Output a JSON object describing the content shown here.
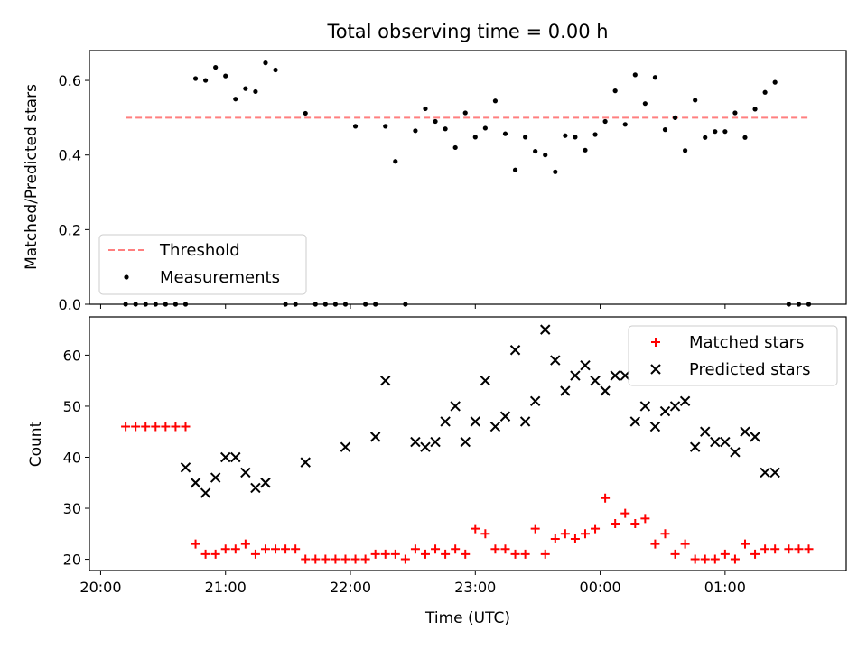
{
  "chart_data": [
    {
      "type": "scatter",
      "title": "Total observing time = 0.00 h",
      "xlabel": "",
      "ylabel": "Matched/Predicted stars",
      "x_tick_labels": [
        "20:00",
        "21:00",
        "22:00",
        "23:00",
        "00:00",
        "01:00"
      ],
      "x_ticks_hours": [
        0,
        1,
        2,
        3,
        4,
        5
      ],
      "xlim_hours": [
        -0.09,
        5.97
      ],
      "ylim": [
        0.0,
        0.68
      ],
      "y_ticks": [
        "0.0",
        "0.2",
        "0.4",
        "0.6"
      ],
      "y_tick_values": [
        0.0,
        0.2,
        0.4,
        0.6
      ],
      "legend_position": "lower-left",
      "threshold": {
        "name": "Threshold",
        "value": 0.5,
        "x_range_hours": [
          0.2,
          5.67
        ],
        "color": "#ff7f7f",
        "style": "dashed"
      },
      "series": [
        {
          "name": "Measurements",
          "color": "#000000",
          "marker": "dot",
          "x_hours": [
            0.2,
            0.28,
            0.36,
            0.44,
            0.52,
            0.6,
            0.68,
            0.76,
            0.84,
            0.92,
            1.0,
            1.08,
            1.16,
            1.24,
            1.32,
            1.4,
            1.48,
            1.56,
            1.64,
            1.72,
            1.8,
            1.88,
            1.96,
            2.04,
            2.12,
            2.2,
            2.28,
            2.36,
            2.44,
            2.52,
            2.6,
            2.68,
            2.76,
            2.84,
            2.92,
            3.0,
            3.08,
            3.16,
            3.24,
            3.32,
            3.4,
            3.48,
            3.56,
            3.64,
            3.72,
            3.8,
            3.88,
            3.96,
            4.04,
            4.12,
            4.2,
            4.28,
            4.36,
            4.44,
            4.52,
            4.6,
            4.68,
            4.76,
            4.84,
            4.92,
            5.0,
            5.08,
            5.16,
            5.24,
            5.32,
            5.4,
            5.51,
            5.59,
            5.67
          ],
          "y": [
            0,
            0,
            0,
            0,
            0,
            0,
            0,
            0.605,
            0.6,
            0.635,
            0.612,
            0.55,
            0.578,
            0.57,
            0.647,
            0.628,
            0,
            0,
            0.512,
            0,
            0,
            0,
            0,
            0.477,
            0,
            0,
            0.477,
            0.383,
            0,
            0.465,
            0.524,
            0.49,
            0.47,
            0.42,
            0.513,
            0.448,
            0.472,
            0.545,
            0.457,
            0.36,
            0.448,
            0.41,
            0.4,
            0.355,
            0.452,
            0.448,
            0.413,
            0.455,
            0.49,
            0.572,
            0.482,
            0.615,
            0.538,
            0.608,
            0.468,
            0.5,
            0.412,
            0.547,
            0.447,
            0.463,
            0.463,
            0.513,
            0.447,
            0.523,
            0.568,
            0.595,
            0,
            0,
            0
          ]
        }
      ]
    },
    {
      "type": "scatter",
      "title": "",
      "xlabel": "Time (UTC)",
      "ylabel": "Count",
      "x_tick_labels": [
        "20:00",
        "21:00",
        "22:00",
        "23:00",
        "00:00",
        "01:00"
      ],
      "x_ticks_hours": [
        0,
        1,
        2,
        3,
        4,
        5
      ],
      "xlim_hours": [
        -0.09,
        5.97
      ],
      "ylim": [
        17.8,
        67.5
      ],
      "y_ticks": [
        "20",
        "30",
        "40",
        "50",
        "60"
      ],
      "y_tick_values": [
        20,
        30,
        40,
        50,
        60
      ],
      "legend_position": "upper-right",
      "series": [
        {
          "name": "Matched stars",
          "color": "#ff0000",
          "marker": "plus",
          "x_hours": [
            0.2,
            0.28,
            0.36,
            0.44,
            0.52,
            0.6,
            0.68,
            0.76,
            0.84,
            0.92,
            1.0,
            1.08,
            1.16,
            1.24,
            1.32,
            1.4,
            1.48,
            1.56,
            1.64,
            1.72,
            1.8,
            1.88,
            1.96,
            2.04,
            2.12,
            2.2,
            2.28,
            2.36,
            2.44,
            2.52,
            2.6,
            2.68,
            2.76,
            2.84,
            2.92,
            3.0,
            3.08,
            3.16,
            3.24,
            3.32,
            3.4,
            3.48,
            3.56,
            3.64,
            3.72,
            3.8,
            3.88,
            3.96,
            4.04,
            4.12,
            4.2,
            4.28,
            4.36,
            4.44,
            4.52,
            4.6,
            4.68,
            4.76,
            4.84,
            4.92,
            5.0,
            5.08,
            5.16,
            5.24,
            5.32,
            5.4,
            5.51,
            5.59,
            5.67
          ],
          "y": [
            46,
            46,
            46,
            46,
            46,
            46,
            46,
            23,
            21,
            21,
            22,
            22,
            23,
            21,
            22,
            22,
            22,
            22,
            20,
            20,
            20,
            20,
            20,
            20,
            20,
            21,
            21,
            21,
            20,
            22,
            21,
            22,
            21,
            22,
            21,
            26,
            25,
            22,
            22,
            21,
            21,
            26,
            21,
            24,
            25,
            24,
            25,
            26,
            32,
            27,
            29,
            27,
            28,
            23,
            25,
            21,
            23,
            20,
            20,
            20,
            21,
            20,
            23,
            21,
            22,
            22,
            22,
            22,
            22
          ]
        },
        {
          "name": "Predicted stars",
          "color": "#000000",
          "marker": "x",
          "x_hours": [
            0.68,
            0.76,
            0.84,
            0.92,
            1.0,
            1.08,
            1.16,
            1.24,
            1.32,
            1.64,
            1.96,
            2.2,
            2.28,
            2.52,
            2.6,
            2.68,
            2.76,
            2.84,
            2.92,
            3.0,
            3.08,
            3.16,
            3.24,
            3.32,
            3.4,
            3.48,
            3.56,
            3.64,
            3.72,
            3.8,
            3.88,
            3.96,
            4.04,
            4.12,
            4.2,
            4.28,
            4.36,
            4.44,
            4.52,
            4.6,
            4.68,
            4.76,
            4.84,
            4.92,
            5.0,
            5.08,
            5.16,
            5.24,
            5.32,
            5.4
          ],
          "y": [
            38,
            35,
            33,
            36,
            40,
            40,
            37,
            34,
            35,
            39,
            42,
            44,
            55,
            43,
            42,
            43,
            47,
            50,
            43,
            47,
            55,
            46,
            48,
            61,
            47,
            51,
            65,
            59,
            53,
            56,
            58,
            55,
            53,
            56,
            56,
            47,
            50,
            46,
            49,
            50,
            51,
            42,
            45,
            43,
            43,
            41,
            45,
            44,
            37,
            37
          ]
        }
      ]
    }
  ]
}
